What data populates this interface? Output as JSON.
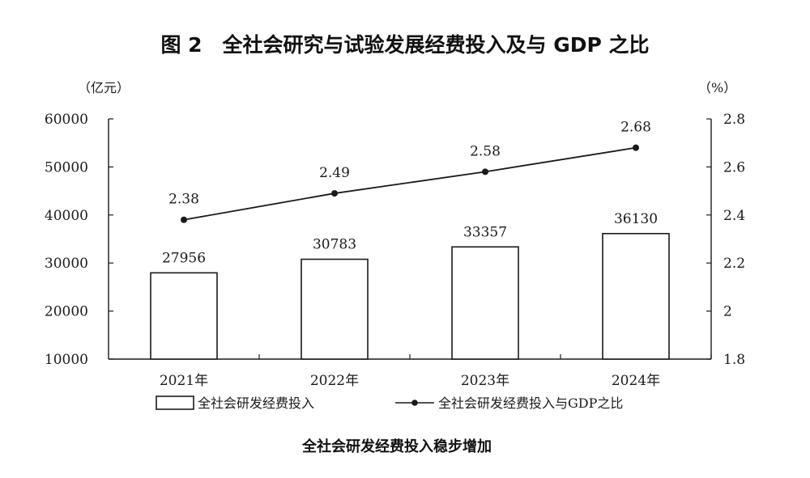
{
  "title": "图 2　全社会研究与试验发展经费投入及与 GDP 之比",
  "caption": "全社会研发经费投入稳步增加",
  "chart_data": {
    "type": "bar+line",
    "title": "图 2　全社会研究与试验发展经费投入及与 GDP 之比",
    "categories": [
      "2021年",
      "2022年",
      "2023年",
      "2024年"
    ],
    "left_axis": {
      "unit": "（亿元）",
      "range": [
        10000,
        60000
      ],
      "ticks": [
        "10000",
        "20000",
        "30000",
        "40000",
        "50000",
        "60000"
      ]
    },
    "right_axis": {
      "unit": "（%）",
      "range": [
        1.8,
        2.8
      ],
      "ticks": [
        "1.8",
        "2",
        "2.2",
        "2.4",
        "2.6",
        "2.8"
      ]
    },
    "series": [
      {
        "name": "全社会研发经费投入",
        "kind": "bar",
        "axis": "left",
        "values": [
          27956,
          30783,
          33357,
          36130
        ],
        "labels": [
          "27956",
          "30783",
          "33357",
          "36130"
        ]
      },
      {
        "name": "全社会研发经费投入与GDP之比",
        "kind": "line",
        "axis": "right",
        "values": [
          2.38,
          2.49,
          2.58,
          2.68
        ],
        "labels": [
          "2.38",
          "2.49",
          "2.58",
          "2.68"
        ]
      }
    ],
    "legend_position": "bottom",
    "grid": false
  }
}
